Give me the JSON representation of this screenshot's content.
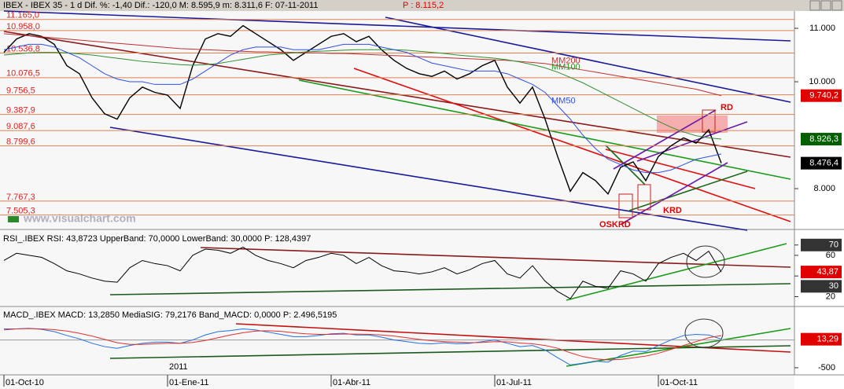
{
  "header": {
    "text": "IBEX - IBEX 35 -  1 d Dif. %: -1,40 Dif.: -120,0 M: 8.595,9 m: 8.311,6 F: 07-11-2011",
    "price": "P : 8.115,2"
  },
  "watermark": "www.visualchart.com",
  "chart_data": [
    {
      "type": "line",
      "categories": [
        "01-Oct-10",
        null,
        null,
        null,
        null,
        null,
        null,
        null,
        null,
        null,
        null,
        null,
        null,
        "01-Ene-11",
        null,
        null,
        null,
        null,
        null,
        null,
        null,
        null,
        null,
        null,
        null,
        null,
        "01-Abr-11",
        null,
        null,
        null,
        null,
        null,
        null,
        null,
        null,
        null,
        null,
        null,
        null,
        "01-Jul-11",
        null,
        null,
        null,
        null,
        null,
        null,
        null,
        null,
        null,
        null,
        null,
        null,
        "01-Oct-11",
        null,
        null,
        null,
        null,
        null
      ],
      "x_year_label": "2011",
      "series": [
        {
          "color": "#000000",
          "values": [
            10550,
            10800,
            10900,
            10850,
            10700,
            10300,
            10150,
            9700,
            9400,
            9300,
            9700,
            9900,
            9800,
            9750,
            9500,
            10300,
            10800,
            10900,
            10850,
            11050,
            10900,
            10750,
            10600,
            10400,
            10550,
            10700,
            10850,
            10900,
            10750,
            10850,
            10600,
            10400,
            10250,
            10150,
            10100,
            10200,
            10050,
            10150,
            10300,
            10400,
            9900,
            9600,
            9900,
            9300,
            8600,
            7950,
            8300,
            8150,
            7900,
            8400,
            8500,
            8150,
            8600,
            8800,
            8950,
            8850,
            9100,
            8476
          ]
        },
        {
          "name": "MM200",
          "color": "#c03030",
          "values": [
            10900,
            10880,
            10860,
            10840,
            10820,
            10800,
            10780,
            10760,
            10740,
            10720,
            10700,
            10680,
            10660,
            10640,
            10620,
            10610,
            10600,
            10590,
            10580,
            10570,
            10560,
            10560,
            10550,
            10550,
            10540,
            10540,
            10530,
            10530,
            10520,
            10510,
            10500,
            10490,
            10480,
            10470,
            10460,
            10450,
            10440,
            10430,
            10420,
            10410,
            10400,
            10380,
            10360,
            10340,
            10300,
            10260,
            10220,
            10180,
            10140,
            10100,
            10060,
            10020,
            9980,
            9940,
            9900,
            9860,
            9800,
            9740
          ]
        },
        {
          "name": "MM100",
          "color": "#2f8f2f",
          "values": [
            10500,
            10520,
            10540,
            10550,
            10550,
            10540,
            10520,
            10500,
            10470,
            10440,
            10410,
            10380,
            10360,
            10340,
            10320,
            10310,
            10320,
            10340,
            10380,
            10420,
            10460,
            10500,
            10520,
            10540,
            10560,
            10570,
            10580,
            10590,
            10600,
            10600,
            10600,
            10600,
            10590,
            10570,
            10550,
            10530,
            10500,
            10480,
            10460,
            10440,
            10410,
            10370,
            10320,
            10260,
            10180,
            10080,
            9980,
            9860,
            9740,
            9620,
            9500,
            9380,
            9260,
            9150,
            9060,
            8990,
            8950,
            8926
          ]
        },
        {
          "name": "MM50",
          "color": "#3050e0",
          "values": [
            10600,
            10650,
            10700,
            10700,
            10650,
            10550,
            10450,
            10300,
            10150,
            10050,
            10000,
            10000,
            9950,
            9950,
            9950,
            10050,
            10200,
            10350,
            10500,
            10600,
            10650,
            10650,
            10650,
            10600,
            10600,
            10600,
            10650,
            10700,
            10700,
            10700,
            10650,
            10600,
            10550,
            10450,
            10350,
            10300,
            10250,
            10200,
            10200,
            10200,
            10150,
            10050,
            9950,
            9800,
            9550,
            9300,
            9000,
            8750,
            8550,
            8450,
            8350,
            8300,
            8300,
            8350,
            8450,
            8550,
            8600,
            8650
          ]
        }
      ],
      "ylim": [
        7265,
        11324
      ],
      "yticks": [
        {
          "value": 11000,
          "label": "11.000"
        },
        {
          "value": 10000,
          "label": "10.000"
        },
        {
          "value": 8000,
          "label": "8.000"
        }
      ],
      "levels": [
        {
          "value": 11165,
          "label": "11.165,0"
        },
        {
          "value": 10958,
          "label": "10.958,0"
        },
        {
          "value": 10536.8,
          "label": "10.536,8"
        },
        {
          "value": 10076.5,
          "label": "10.076,5"
        },
        {
          "value": 9756.5,
          "label": "9.756,5"
        },
        {
          "value": 9387.9,
          "label": "9.387,9"
        },
        {
          "value": 9087.6,
          "label": "9.087,6"
        },
        {
          "value": 8799.6,
          "label": "8.799,6"
        },
        {
          "value": 7767.3,
          "label": "7.767,3"
        },
        {
          "value": 7505.3,
          "label": "7.505,3"
        }
      ],
      "markers": [
        {
          "value": 9740.2,
          "label": "9.740,2",
          "color": "#e00000"
        },
        {
          "value": 8926.3,
          "label": "8.926,3",
          "color": "#006000"
        },
        {
          "value": 8476.4,
          "label": "8.476,4",
          "color": "#000000"
        }
      ],
      "annotations": [
        "RD",
        "KRD",
        "OSKRD"
      ]
    },
    {
      "type": "line",
      "title": "RSI_.IBEX RSI: 43,8723 UpperBand: 70,0000 LowerBand: 30,0000 P: 128,4397",
      "series": [
        {
          "color": "#000000",
          "values": [
            55,
            62,
            60,
            58,
            52,
            45,
            42,
            38,
            35,
            34,
            48,
            55,
            52,
            50,
            45,
            60,
            66,
            65,
            62,
            68,
            60,
            55,
            52,
            48,
            55,
            58,
            62,
            60,
            52,
            58,
            50,
            45,
            44,
            42,
            44,
            48,
            42,
            46,
            52,
            55,
            42,
            38,
            50,
            35,
            25,
            18,
            35,
            30,
            28,
            45,
            42,
            35,
            52,
            58,
            62,
            55,
            64,
            43.87
          ]
        }
      ],
      "ylim": [
        12,
        82
      ],
      "yticks": [
        70,
        60,
        40,
        20
      ],
      "markers": [
        {
          "value": 70,
          "label": "70",
          "color": "#333333"
        },
        {
          "value": 43.87,
          "label": "43,87",
          "color": "#e00000"
        },
        {
          "value": 30,
          "label": "30",
          "color": "#333333"
        }
      ]
    },
    {
      "type": "line",
      "title": "MACD_.IBEX MACD: 13,2850 MediaSIG: 79,2176 Band_MACD: 0,0000 P: 2.496,5195",
      "series": [
        {
          "color": "#2070e0",
          "values": [
            180,
            200,
            210,
            190,
            150,
            80,
            20,
            -60,
            -120,
            -150,
            -100,
            -60,
            -40,
            -40,
            -60,
            0,
            90,
            150,
            170,
            200,
            180,
            140,
            100,
            60,
            60,
            80,
            110,
            120,
            90,
            90,
            50,
            0,
            -30,
            -60,
            -70,
            -50,
            -70,
            -60,
            -30,
            0,
            -60,
            -120,
            -100,
            -180,
            -320,
            -450,
            -420,
            -380,
            -400,
            -280,
            -200,
            -210,
            -100,
            0,
            80,
            100,
            90,
            13.285
          ]
        },
        {
          "color": "#e03030",
          "values": [
            200,
            200,
            205,
            200,
            185,
            160,
            120,
            70,
            10,
            -50,
            -80,
            -80,
            -70,
            -60,
            -60,
            -45,
            -10,
            40,
            90,
            130,
            160,
            165,
            155,
            130,
            110,
            100,
            100,
            105,
            105,
            100,
            90,
            70,
            40,
            10,
            -15,
            -30,
            -40,
            -50,
            -45,
            -30,
            -35,
            -55,
            -70,
            -100,
            -150,
            -230,
            -300,
            -340,
            -360,
            -350,
            -320,
            -290,
            -240,
            -170,
            -100,
            -30,
            40,
            79.2176
          ]
        }
      ],
      "ylim": [
        -600,
        560
      ],
      "yticks": [
        -500
      ],
      "markers": [
        {
          "value": 13.29,
          "label": "13,29",
          "color": "#e00000"
        }
      ]
    }
  ]
}
